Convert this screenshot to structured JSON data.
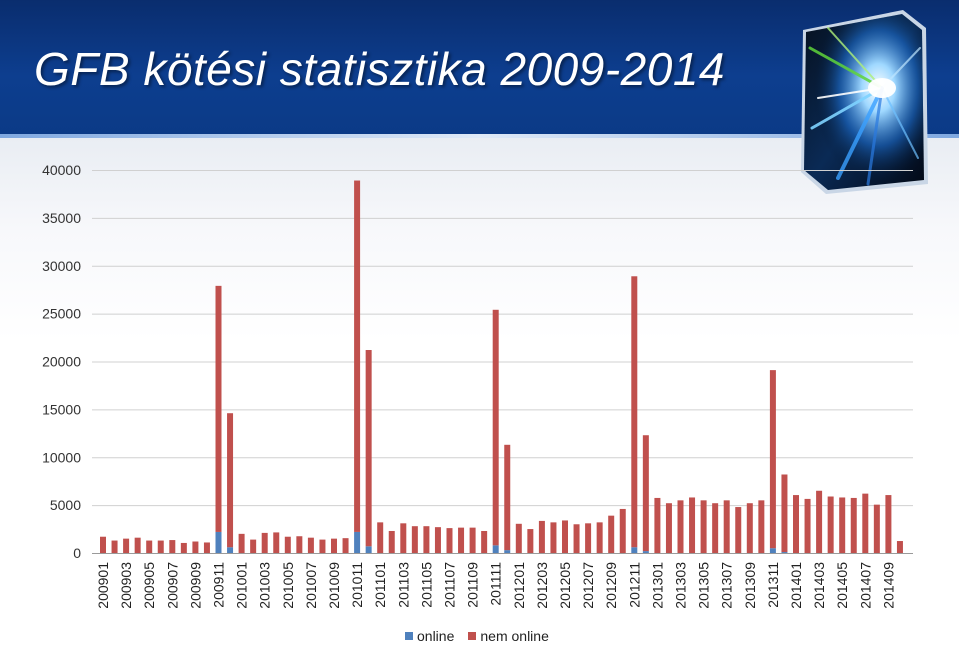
{
  "slide": {
    "title": "GFB kötési statisztika 2009-2014"
  },
  "colors": {
    "online": "#4f81bd",
    "nem_online": "#c0504d",
    "banner": "#0d3e8f"
  },
  "chart_data": {
    "type": "bar",
    "stacked": true,
    "title": "",
    "xlabel": "",
    "ylabel": "",
    "ylim": [
      0,
      40000
    ],
    "yticks": [
      0,
      5000,
      10000,
      15000,
      20000,
      25000,
      30000,
      35000,
      40000
    ],
    "grid": true,
    "legend_position": "bottom",
    "categories": [
      "200901",
      "200902",
      "200903",
      "200904",
      "200905",
      "200906",
      "200907",
      "200908",
      "200909",
      "200910",
      "200911",
      "200912",
      "201001",
      "201002",
      "201003",
      "201004",
      "201005",
      "201006",
      "201007",
      "201008",
      "201009",
      "201010",
      "201011",
      "201012",
      "201101",
      "201102",
      "201103",
      "201104",
      "201105",
      "201106",
      "201107",
      "201108",
      "201109",
      "201110",
      "201111",
      "201112",
      "201201",
      "201202",
      "201203",
      "201204",
      "201205",
      "201206",
      "201207",
      "201208",
      "201209",
      "201210",
      "201211",
      "201212",
      "201301",
      "201302",
      "201303",
      "201304",
      "201305",
      "201306",
      "201307",
      "201308",
      "201309",
      "201310",
      "201311",
      "201312",
      "201401",
      "201402",
      "201403",
      "201404",
      "201405",
      "201406",
      "201407",
      "201408",
      "201409",
      "201410"
    ],
    "tick_labels": [
      "200901",
      "200903",
      "200905",
      "200907",
      "200909",
      "200911",
      "201001",
      "201003",
      "201005",
      "201007",
      "201009",
      "201011",
      "201101",
      "201103",
      "201105",
      "201107",
      "201109",
      "201111",
      "201201",
      "201203",
      "201205",
      "201207",
      "201209",
      "201211",
      "201301",
      "201303",
      "201305",
      "201307",
      "201309",
      "201311",
      "201401",
      "201403",
      "201405",
      "201407",
      "201409"
    ],
    "series": [
      {
        "name": "online",
        "values": [
          0,
          0,
          0,
          0,
          0,
          0,
          0,
          0,
          0,
          0,
          2200,
          600,
          0,
          0,
          0,
          0,
          0,
          0,
          0,
          0,
          0,
          0,
          2200,
          700,
          0,
          0,
          0,
          0,
          0,
          0,
          0,
          0,
          0,
          0,
          800,
          300,
          0,
          0,
          0,
          0,
          0,
          0,
          0,
          0,
          0,
          0,
          600,
          200,
          0,
          0,
          0,
          0,
          0,
          0,
          0,
          0,
          0,
          0,
          500,
          100,
          0,
          0,
          0,
          0,
          0,
          0,
          0,
          0,
          0,
          0
        ]
      },
      {
        "name": "nem online",
        "values": [
          1700,
          1300,
          1500,
          1600,
          1300,
          1300,
          1350,
          1050,
          1200,
          1100,
          25700,
          14000,
          2000,
          1400,
          2100,
          2150,
          1700,
          1750,
          1600,
          1400,
          1500,
          1550,
          36700,
          20500,
          3200,
          2300,
          3100,
          2800,
          2800,
          2700,
          2600,
          2650,
          2650,
          2300,
          24600,
          11000,
          3050,
          2500,
          3350,
          3200,
          3400,
          3000,
          3100,
          3200,
          3900,
          4600,
          28300,
          12100,
          5750,
          5200,
          5500,
          5800,
          5500,
          5200,
          5500,
          4800,
          5200,
          5500,
          18600,
          8100,
          6050,
          5650,
          6500,
          5900,
          5800,
          5750,
          6200,
          5050,
          6050,
          1250
        ]
      }
    ]
  }
}
